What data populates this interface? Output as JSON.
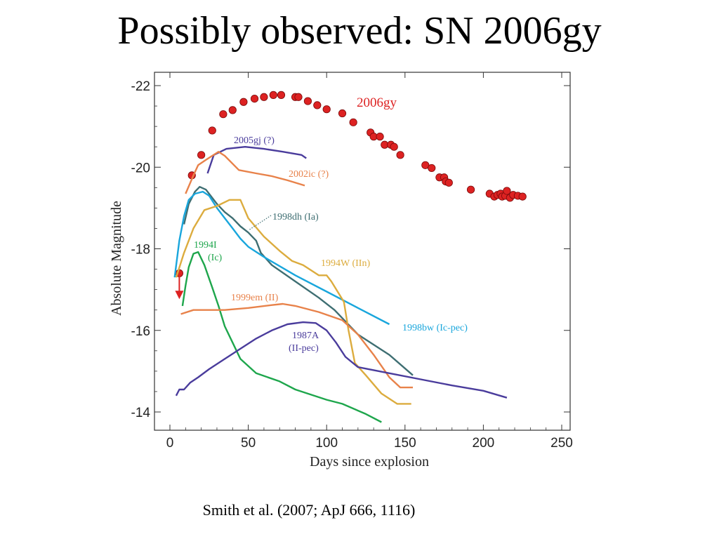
{
  "slide": {
    "title": "Possibly observed: SN 2006gy",
    "citation": "Smith et al. (2007; ApJ 666, 1116)"
  },
  "chart_data": {
    "type": "line",
    "xlabel": "Days since explosion",
    "ylabel": "Absolute Magnitude",
    "xlim": [
      0,
      250
    ],
    "ylim": [
      -13.6,
      -22.2
    ],
    "x_ticks": [
      0,
      50,
      100,
      150,
      200,
      250
    ],
    "y_ticks": [
      -22,
      -20,
      -18,
      -16,
      -14
    ],
    "y_tick_labels": [
      "-22",
      "-20",
      "-18",
      "-16",
      "-14"
    ],
    "y_axis_inverted": true,
    "grid": false,
    "colors": {
      "sn2006gy": "#dd2222",
      "sn2005gj": "#4a3c9c",
      "sn2002ic": "#e8824a",
      "sn1998dh": "#3e6e72",
      "sn1998bw": "#19a6dc",
      "sn1994W": "#dcac3e",
      "sn1994I": "#1ea64c",
      "sn1999em": "#e8824a",
      "sn1987A": "#4a3c9c"
    },
    "series": [
      {
        "name": "2006gy",
        "style": "points",
        "color": "#dd2222",
        "label_text": "2006gy",
        "points": [
          [
            14,
            -19.8
          ],
          [
            20,
            -20.3
          ],
          [
            27,
            -20.9
          ],
          [
            34,
            -21.3
          ],
          [
            40,
            -21.4
          ],
          [
            47,
            -21.6
          ],
          [
            54,
            -21.68
          ],
          [
            60,
            -21.72
          ],
          [
            66,
            -21.77
          ],
          [
            71,
            -21.77
          ],
          [
            80,
            -21.72
          ],
          [
            82,
            -21.72
          ],
          [
            88,
            -21.62
          ],
          [
            94,
            -21.52
          ],
          [
            100,
            -21.42
          ],
          [
            110,
            -21.32
          ],
          [
            117,
            -21.1
          ],
          [
            128,
            -20.85
          ],
          [
            130,
            -20.75
          ],
          [
            134,
            -20.75
          ],
          [
            137,
            -20.55
          ],
          [
            141,
            -20.55
          ],
          [
            143,
            -20.5
          ],
          [
            147,
            -20.3
          ],
          [
            163,
            -20.05
          ],
          [
            167,
            -19.98
          ],
          [
            172,
            -19.75
          ],
          [
            175,
            -19.75
          ],
          [
            176,
            -19.65
          ],
          [
            178,
            -19.62
          ],
          [
            192,
            -19.45
          ],
          [
            204,
            -19.35
          ],
          [
            207,
            -19.28
          ],
          [
            209,
            -19.32
          ],
          [
            211,
            -19.35
          ],
          [
            212,
            -19.28
          ],
          [
            214,
            -19.3
          ],
          [
            215,
            -19.42
          ],
          [
            217,
            -19.25
          ],
          [
            219,
            -19.32
          ],
          [
            222,
            -19.3
          ],
          [
            225,
            -19.28
          ]
        ]
      },
      {
        "name": "2006gy upper limit",
        "style": "arrow",
        "color": "#dd2222",
        "from": [
          6,
          -17.4
        ],
        "to": [
          6,
          -16.8
        ]
      },
      {
        "name": "2005gj",
        "style": "line",
        "color": "#4a3c9c",
        "label_text": "2005gj (?)",
        "points": [
          [
            24,
            -19.85
          ],
          [
            28,
            -20.3
          ],
          [
            36,
            -20.45
          ],
          [
            48,
            -20.5
          ],
          [
            60,
            -20.45
          ],
          [
            72,
            -20.38
          ],
          [
            84,
            -20.3
          ],
          [
            87,
            -20.22
          ]
        ]
      },
      {
        "name": "2002ic",
        "style": "line",
        "color": "#e8824a",
        "label_text": "2002ic (?)",
        "points": [
          [
            10,
            -19.35
          ],
          [
            15,
            -19.8
          ],
          [
            18,
            -20.05
          ],
          [
            23,
            -20.18
          ],
          [
            31,
            -20.38
          ],
          [
            35,
            -20.28
          ],
          [
            44,
            -19.93
          ],
          [
            55,
            -19.85
          ],
          [
            65,
            -19.78
          ],
          [
            75,
            -19.68
          ],
          [
            86,
            -19.55
          ]
        ]
      },
      {
        "name": "1998dh",
        "style": "line",
        "color": "#3e6e72",
        "label_text": "1998dh (Ia)",
        "points": [
          [
            9,
            -18.6
          ],
          [
            12,
            -19.1
          ],
          [
            16,
            -19.4
          ],
          [
            19,
            -19.52
          ],
          [
            23,
            -19.45
          ],
          [
            30,
            -19.1
          ],
          [
            35,
            -18.9
          ],
          [
            40,
            -18.75
          ],
          [
            45,
            -18.55
          ],
          [
            50,
            -18.4
          ],
          [
            55,
            -18.2
          ],
          [
            58,
            -17.9
          ],
          [
            65,
            -17.6
          ],
          [
            80,
            -17.2
          ],
          [
            95,
            -16.8
          ],
          [
            105,
            -16.5
          ],
          [
            120,
            -15.9
          ],
          [
            140,
            -15.4
          ],
          [
            155,
            -14.9
          ]
        ]
      },
      {
        "name": "1998bw",
        "style": "line",
        "color": "#19a6dc",
        "label_text": "1998bw (Ic-pec)",
        "points": [
          [
            3,
            -17.3
          ],
          [
            6,
            -18.2
          ],
          [
            9,
            -18.8
          ],
          [
            12,
            -19.2
          ],
          [
            16,
            -19.35
          ],
          [
            21,
            -19.4
          ],
          [
            25,
            -19.3
          ],
          [
            30,
            -19.0
          ],
          [
            35,
            -18.75
          ],
          [
            40,
            -18.5
          ],
          [
            45,
            -18.25
          ],
          [
            50,
            -18.05
          ],
          [
            60,
            -17.8
          ],
          [
            80,
            -17.35
          ],
          [
            100,
            -16.95
          ],
          [
            120,
            -16.55
          ],
          [
            140,
            -16.15
          ]
        ]
      },
      {
        "name": "1994W",
        "style": "line",
        "color": "#dcac3e",
        "label_text": "1994W (IIn)",
        "points": [
          [
            4,
            -17.3
          ],
          [
            9,
            -17.9
          ],
          [
            15,
            -18.5
          ],
          [
            22,
            -18.95
          ],
          [
            30,
            -19.05
          ],
          [
            38,
            -19.2
          ],
          [
            45,
            -19.2
          ],
          [
            50,
            -18.75
          ],
          [
            60,
            -18.3
          ],
          [
            70,
            -17.95
          ],
          [
            78,
            -17.7
          ],
          [
            85,
            -17.6
          ],
          [
            95,
            -17.35
          ],
          [
            100,
            -17.35
          ],
          [
            103,
            -17.2
          ],
          [
            111,
            -16.7
          ],
          [
            114,
            -16.0
          ],
          [
            118,
            -15.2
          ],
          [
            125,
            -14.9
          ],
          [
            135,
            -14.45
          ],
          [
            145,
            -14.2
          ],
          [
            154,
            -14.2
          ]
        ]
      },
      {
        "name": "1994I",
        "style": "line",
        "color": "#1ea64c",
        "label_text": "1994I",
        "label_text_2": "(Ic)",
        "points": [
          [
            8,
            -16.6
          ],
          [
            10,
            -17.1
          ],
          [
            12,
            -17.55
          ],
          [
            15,
            -17.88
          ],
          [
            18,
            -17.92
          ],
          [
            22,
            -17.6
          ],
          [
            27,
            -17.05
          ],
          [
            31,
            -16.6
          ],
          [
            35,
            -16.1
          ],
          [
            40,
            -15.7
          ],
          [
            45,
            -15.3
          ],
          [
            55,
            -14.95
          ],
          [
            70,
            -14.75
          ],
          [
            80,
            -14.55
          ],
          [
            100,
            -14.3
          ],
          [
            110,
            -14.2
          ],
          [
            125,
            -13.95
          ],
          [
            135,
            -13.75
          ]
        ]
      },
      {
        "name": "1999em",
        "style": "line",
        "color": "#e8824a",
        "label_text": "1999em (II)",
        "points": [
          [
            7,
            -16.4
          ],
          [
            15,
            -16.5
          ],
          [
            35,
            -16.5
          ],
          [
            50,
            -16.55
          ],
          [
            65,
            -16.62
          ],
          [
            72,
            -16.65
          ],
          [
            80,
            -16.6
          ],
          [
            95,
            -16.45
          ],
          [
            110,
            -16.25
          ],
          [
            120,
            -15.9
          ],
          [
            130,
            -15.4
          ],
          [
            140,
            -14.85
          ],
          [
            147,
            -14.6
          ],
          [
            155,
            -14.6
          ]
        ]
      },
      {
        "name": "1987A",
        "style": "line",
        "color": "#4a3c9c",
        "label_text": "1987A",
        "label_text_2": "(II-pec)",
        "points": [
          [
            4,
            -14.4
          ],
          [
            6,
            -14.55
          ],
          [
            9,
            -14.55
          ],
          [
            13,
            -14.72
          ],
          [
            18,
            -14.85
          ],
          [
            25,
            -15.05
          ],
          [
            35,
            -15.3
          ],
          [
            45,
            -15.55
          ],
          [
            55,
            -15.8
          ],
          [
            65,
            -16.0
          ],
          [
            75,
            -16.15
          ],
          [
            85,
            -16.2
          ],
          [
            93,
            -16.18
          ],
          [
            100,
            -16.0
          ],
          [
            106,
            -15.7
          ],
          [
            112,
            -15.35
          ],
          [
            120,
            -15.1
          ],
          [
            140,
            -14.95
          ],
          [
            160,
            -14.8
          ],
          [
            180,
            -14.65
          ],
          [
            200,
            -14.52
          ],
          [
            215,
            -14.35
          ]
        ]
      }
    ]
  }
}
